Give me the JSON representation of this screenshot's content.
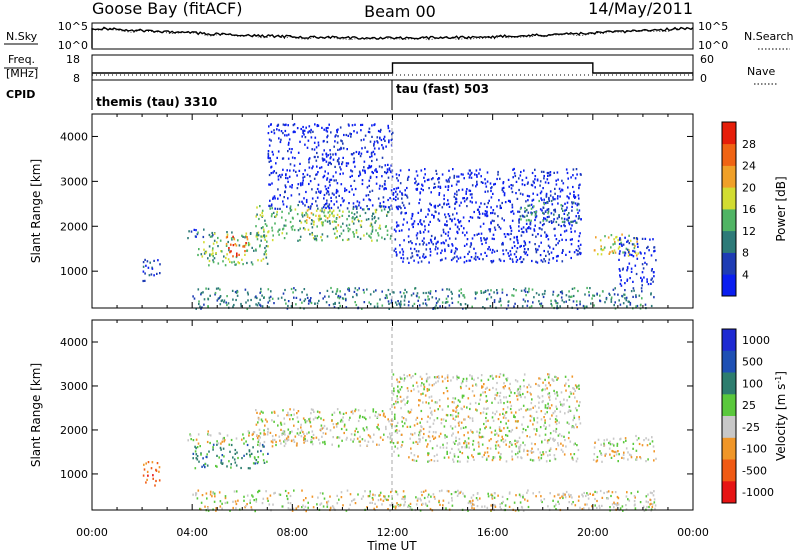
{
  "header": {
    "station": "Goose Bay (fitACF)",
    "beam": "Beam 00",
    "date": "14/May/2011"
  },
  "noise_panel": {
    "left_label": "N.Sky",
    "left_ticks": [
      "10^5",
      "10^0"
    ],
    "right_ticks": [
      "10^5",
      "10^0"
    ],
    "right_label": "N.Search"
  },
  "freq_panel": {
    "left_label_top": "Freq.",
    "left_label_bottom": "[MHz]",
    "left_ticks": [
      "18",
      "8"
    ],
    "right_ticks": [
      "60",
      "0"
    ],
    "right_label": "Nave"
  },
  "cpid": {
    "label": "CPID",
    "modes": [
      {
        "name": "themis (tau) 3310",
        "start_hour": 0,
        "end_hour": 12
      },
      {
        "name": "tau (fast) 503",
        "start_hour": 12,
        "end_hour": 24
      }
    ]
  },
  "chart_data": [
    {
      "type": "heatmap",
      "parameter": "power",
      "ylabel": "Slant Range [km]",
      "xlim": [
        0,
        24
      ],
      "ylim": [
        180,
        4500
      ],
      "yticks": [
        "1000",
        "2000",
        "3000",
        "4000"
      ],
      "colorbar": {
        "label": "Power [dB]",
        "ticks": [
          "4",
          "8",
          "12",
          "16",
          "20",
          "24",
          "28"
        ],
        "colors": [
          "#0a1ef0",
          "#1e3cb4",
          "#2d7a78",
          "#50b464",
          "#d2dc32",
          "#f0a028",
          "#f06414",
          "#e61e0a"
        ]
      },
      "regions": [
        {
          "t0": 2.0,
          "t1": 2.7,
          "r0": 750,
          "r1": 1300,
          "level": 1
        },
        {
          "t0": 3.8,
          "t1": 5.0,
          "r0": 1750,
          "r1": 1950,
          "level": 1
        },
        {
          "t0": 4.2,
          "t1": 7.0,
          "r0": 1150,
          "r1": 1900,
          "level": 3
        },
        {
          "t0": 5.3,
          "t1": 6.2,
          "r0": 1350,
          "r1": 1800,
          "level": 6
        },
        {
          "t0": 6.5,
          "t1": 12.0,
          "r0": 1700,
          "r1": 2500,
          "level": 3
        },
        {
          "t0": 8.5,
          "t1": 10.0,
          "r0": 2000,
          "r1": 2400,
          "level": 4
        },
        {
          "t0": 7.0,
          "t1": 12.0,
          "r0": 2400,
          "r1": 4300,
          "level": 0
        },
        {
          "t0": 12.0,
          "t1": 19.5,
          "r0": 1200,
          "r1": 3300,
          "level": 0
        },
        {
          "t0": 17.0,
          "t1": 19.5,
          "r0": 2100,
          "r1": 2600,
          "level": 2
        },
        {
          "t0": 20.0,
          "t1": 21.8,
          "r0": 1350,
          "r1": 1850,
          "level": 4
        },
        {
          "t0": 21.0,
          "t1": 22.5,
          "r0": 700,
          "r1": 1800,
          "level": 0
        },
        {
          "t0": 4.0,
          "t1": 22.5,
          "r0": 180,
          "r1": 650,
          "level": 2
        }
      ]
    },
    {
      "type": "heatmap",
      "parameter": "velocity",
      "ylabel": "Slant Range [km]",
      "xlabel": "Time UT",
      "xlim": [
        0,
        24
      ],
      "ylim": [
        180,
        4500
      ],
      "xticks": [
        "00:00",
        "04:00",
        "08:00",
        "12:00",
        "16:00",
        "20:00",
        "00:00"
      ],
      "yticks": [
        "1000",
        "2000",
        "3000",
        "4000"
      ],
      "colorbar": {
        "label": "Velocity [m s^-1]",
        "ticks": [
          "1000",
          "500",
          "100",
          "25",
          "-25",
          "-100",
          "-500",
          "-1000"
        ],
        "colors": [
          "#1e2ad2",
          "#1e50b4",
          "#2d7d6e",
          "#5ac83c",
          "#c8c8c8",
          "#f09628",
          "#f05a14",
          "#e61414"
        ]
      },
      "regions": [
        {
          "t0": 2.0,
          "t1": 2.7,
          "r0": 750,
          "r1": 1300,
          "level": 6
        },
        {
          "t0": 3.8,
          "t1": 8.5,
          "r0": 1700,
          "r1": 2000,
          "level": 4
        },
        {
          "t0": 4.0,
          "t1": 7.0,
          "r0": 1150,
          "r1": 1700,
          "level": 2
        },
        {
          "t0": 6.5,
          "t1": 12.0,
          "r0": 1650,
          "r1": 2500,
          "level": 4
        },
        {
          "t0": 12.0,
          "t1": 19.5,
          "r0": 1300,
          "r1": 3300,
          "level": 4
        },
        {
          "t0": 20.0,
          "t1": 22.5,
          "r0": 1300,
          "r1": 1900,
          "level": 4
        },
        {
          "t0": 4.0,
          "t1": 22.5,
          "r0": 180,
          "r1": 650,
          "level": 4
        }
      ]
    }
  ]
}
